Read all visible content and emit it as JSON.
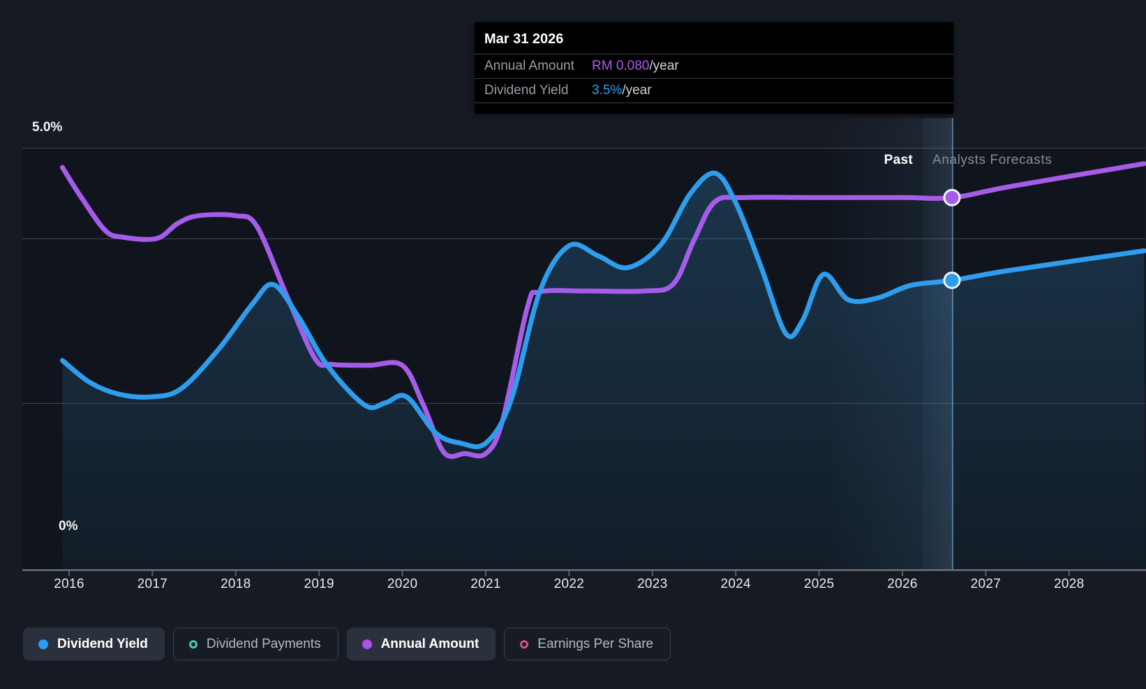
{
  "tooltip": {
    "title": "Mar 31 2026",
    "rows": [
      {
        "label": "Annual Amount",
        "value": "RM 0.080",
        "suffix": "/year",
        "value_color": "#ab5cf0"
      },
      {
        "label": "Dividend Yield",
        "value": "3.5%",
        "suffix": "/year",
        "value_color": "#2f9ff0"
      }
    ]
  },
  "axis": {
    "y_top_label": "5.0%",
    "y_bottom_label": "0%",
    "years": [
      "2016",
      "2017",
      "2018",
      "2019",
      "2020",
      "2021",
      "2022",
      "2023",
      "2024",
      "2025",
      "2026",
      "2027",
      "2028"
    ]
  },
  "annotations": {
    "past": "Past",
    "forecast": "Analysts Forecasts"
  },
  "legend": [
    {
      "label": "Dividend Yield",
      "color": "#2d9cf0",
      "filled": true,
      "active": true
    },
    {
      "label": "Dividend Payments",
      "color": "#45c8b8",
      "filled": false,
      "active": false
    },
    {
      "label": "Annual Amount",
      "color": "#ab53e8",
      "filled": true,
      "active": true
    },
    {
      "label": "Earnings Per Share",
      "color": "#d14f8c",
      "filled": false,
      "active": false
    }
  ],
  "chart_data": {
    "type": "line",
    "title": "Dividend yield and annual dividend amount, past and analysts forecasts",
    "x_range": [
      2015.9,
      2028.9
    ],
    "x_tick_labels": [
      "2016",
      "2017",
      "2018",
      "2019",
      "2020",
      "2021",
      "2022",
      "2023",
      "2024",
      "2025",
      "2026",
      "2027",
      "2028"
    ],
    "ylim_percent": [
      0,
      5
    ],
    "grid_percent_lines": [
      5.0,
      3.9,
      2.0,
      0
    ],
    "divider_year": 2026.25,
    "legend_position": "bottom",
    "hover": {
      "date": "Mar 31 2026",
      "annual_amount_rm": 0.08,
      "annual_amount_text": "RM 0.080/year",
      "dividend_yield_pct": 3.5,
      "dividend_yield_text": "3.5%/year",
      "marker_year": 2026.6
    },
    "series": [
      {
        "name": "Dividend Yield",
        "unit": "%",
        "color": "#2e9ded",
        "style": "solid-area",
        "points": [
          [
            2015.92,
            2.48
          ],
          [
            2016.25,
            2.22
          ],
          [
            2016.6,
            2.08
          ],
          [
            2017.0,
            2.05
          ],
          [
            2017.35,
            2.15
          ],
          [
            2017.8,
            2.62
          ],
          [
            2018.2,
            3.15
          ],
          [
            2018.45,
            3.38
          ],
          [
            2018.75,
            3.0
          ],
          [
            2019.1,
            2.42
          ],
          [
            2019.55,
            1.95
          ],
          [
            2019.8,
            1.98
          ],
          [
            2020.05,
            2.05
          ],
          [
            2020.4,
            1.62
          ],
          [
            2020.7,
            1.5
          ],
          [
            2021.0,
            1.5
          ],
          [
            2021.3,
            2.0
          ],
          [
            2021.65,
            3.3
          ],
          [
            2022.0,
            3.84
          ],
          [
            2022.35,
            3.72
          ],
          [
            2022.7,
            3.58
          ],
          [
            2023.1,
            3.85
          ],
          [
            2023.45,
            4.45
          ],
          [
            2023.75,
            4.7
          ],
          [
            2024.0,
            4.35
          ],
          [
            2024.3,
            3.6
          ],
          [
            2024.6,
            2.8
          ],
          [
            2024.8,
            2.95
          ],
          [
            2025.05,
            3.5
          ],
          [
            2025.35,
            3.2
          ],
          [
            2025.7,
            3.22
          ],
          [
            2026.1,
            3.37
          ],
          [
            2026.6,
            3.43
          ],
          [
            2027.3,
            3.55
          ],
          [
            2028.9,
            3.78
          ]
        ]
      },
      {
        "name": "Annual Amount",
        "unit": "RM/year",
        "color": "#a55ce8",
        "style": "solid",
        "points": [
          [
            2015.92,
            0.0866
          ],
          [
            2016.13,
            0.0806
          ],
          [
            2016.43,
            0.0731
          ],
          [
            2016.64,
            0.0716
          ],
          [
            2017.05,
            0.0713
          ],
          [
            2017.3,
            0.0745
          ],
          [
            2017.55,
            0.0762
          ],
          [
            2018.0,
            0.0762
          ],
          [
            2018.25,
            0.074
          ],
          [
            2018.6,
            0.0595
          ],
          [
            2018.95,
            0.0455
          ],
          [
            2019.15,
            0.0442
          ],
          [
            2019.6,
            0.044
          ],
          [
            2020.0,
            0.044
          ],
          [
            2020.25,
            0.0355
          ],
          [
            2020.5,
            0.0252
          ],
          [
            2020.75,
            0.025
          ],
          [
            2021.0,
            0.025
          ],
          [
            2021.2,
            0.032
          ],
          [
            2021.5,
            0.0565
          ],
          [
            2021.65,
            0.0598
          ],
          [
            2022.2,
            0.06
          ],
          [
            2022.9,
            0.06
          ],
          [
            2023.25,
            0.0615
          ],
          [
            2023.5,
            0.071
          ],
          [
            2023.75,
            0.0792
          ],
          [
            2024.1,
            0.0801
          ],
          [
            2025.0,
            0.0801
          ],
          [
            2026.0,
            0.0801
          ],
          [
            2026.6,
            0.0801
          ],
          [
            2027.3,
            0.0825
          ],
          [
            2028.9,
            0.0874
          ]
        ]
      }
    ]
  }
}
